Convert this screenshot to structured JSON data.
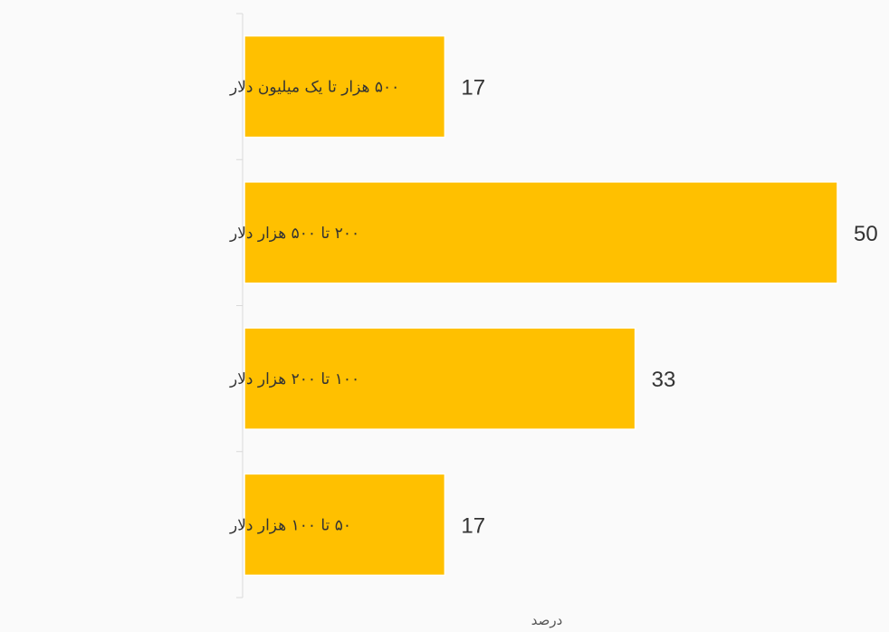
{
  "chart_data": {
    "type": "bar",
    "orientation": "horizontal",
    "categories": [
      "۵۰۰ هزار تا یک میلیون  دلار",
      "۲۰۰ تا ۵۰۰ هزار دلار",
      "۱۰۰ تا ۲۰۰ هزار دلار",
      "۵۰  تا ۱۰۰ هزار دلار"
    ],
    "values": [
      17,
      50,
      33,
      17
    ],
    "xlabel": "درصد",
    "ylabel": "",
    "xlim": [
      0,
      50
    ],
    "grid": false,
    "legend": false,
    "bar_color": "#FFC000",
    "text_color": "#333333",
    "axis_color": "#d9d9d9",
    "background": "#fafafa"
  }
}
